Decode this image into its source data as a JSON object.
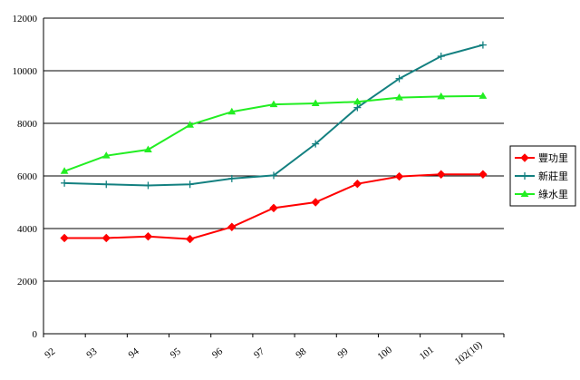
{
  "chart_data": {
    "type": "line",
    "categories": [
      "92",
      "93",
      "94",
      "95",
      "96",
      "97",
      "98",
      "99",
      "100",
      "101",
      "102(10)"
    ],
    "ylim": [
      0,
      12000
    ],
    "yticks": [
      0,
      2000,
      4000,
      6000,
      8000,
      10000,
      12000
    ],
    "grid": "horizontal",
    "legend_position": "right",
    "series": [
      {
        "name": "豐功里",
        "color": "#ff0000",
        "marker": "diamond",
        "values": [
          3640,
          3640,
          3700,
          3600,
          4060,
          4780,
          5000,
          5700,
          5980,
          6060,
          6060
        ]
      },
      {
        "name": "新莊里",
        "color": "#138080",
        "marker": "plus",
        "values": [
          5730,
          5680,
          5640,
          5680,
          5900,
          6020,
          7220,
          8600,
          9700,
          10550,
          10980
        ]
      },
      {
        "name": "綠水里",
        "color": "#22ee22",
        "marker": "triangle",
        "values": [
          6180,
          6770,
          7000,
          7940,
          8440,
          8720,
          8760,
          8820,
          8980,
          9020,
          9040
        ]
      }
    ]
  }
}
